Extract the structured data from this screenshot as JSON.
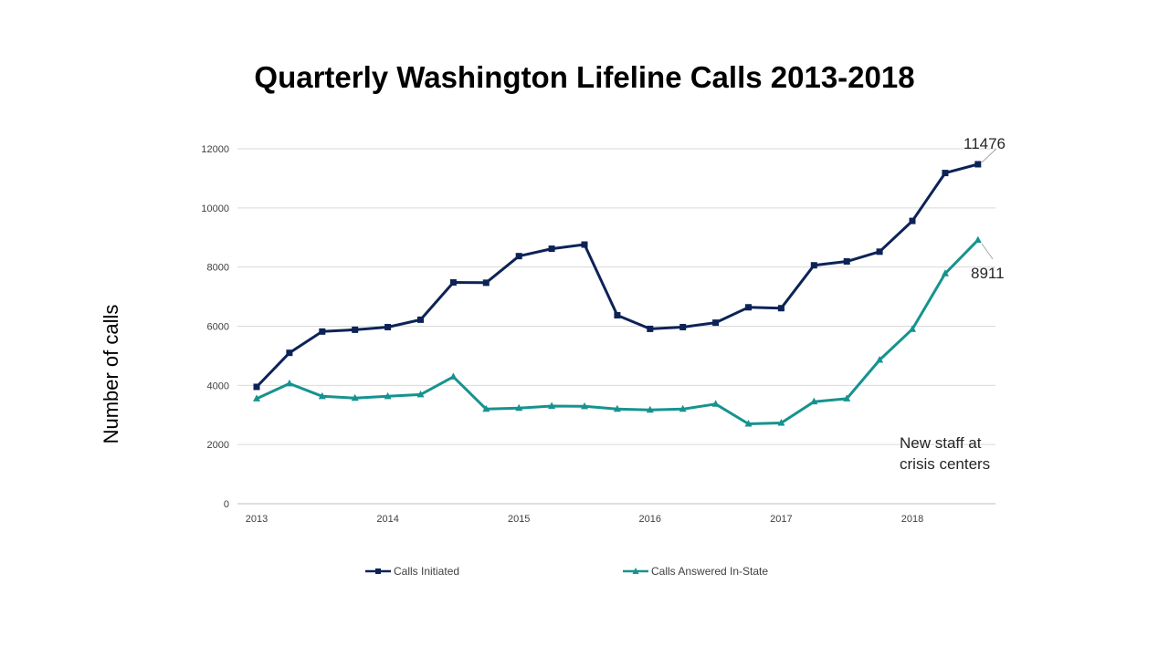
{
  "chart_data": {
    "type": "line",
    "title": "Quarterly Washington Lifeline Calls 2013-2018",
    "ylabel": "Number of calls",
    "xlabel": "",
    "ylim": [
      0,
      12000
    ],
    "yticks": [
      0,
      2000,
      4000,
      6000,
      8000,
      10000,
      12000
    ],
    "x_tick_labels": [
      "2013",
      "2014",
      "2015",
      "2016",
      "2017",
      "2018"
    ],
    "x": [
      "2013 Q1",
      "2013 Q2",
      "2013 Q3",
      "2013 Q4",
      "2014 Q1",
      "2014 Q2",
      "2014 Q3",
      "2014 Q4",
      "2015 Q1",
      "2015 Q2",
      "2015 Q3",
      "2015 Q4",
      "2016 Q1",
      "2016 Q2",
      "2016 Q3",
      "2016 Q4",
      "2017 Q1",
      "2017 Q2",
      "2017 Q3",
      "2017 Q4",
      "2018 Q1",
      "2018 Q2",
      "2018 Q3"
    ],
    "grid": true,
    "legend_position": "bottom",
    "series": [
      {
        "name": "Calls Initiated",
        "color": "#0d2357",
        "marker": "square",
        "values": [
          3950,
          5100,
          5820,
          5880,
          5970,
          6220,
          7480,
          7470,
          8370,
          8620,
          8760,
          6370,
          5910,
          5970,
          6120,
          6640,
          6610,
          8060,
          8190,
          8520,
          9560,
          11180,
          11476
        ]
      },
      {
        "name": "Calls Answered In-State",
        "color": "#16938f",
        "marker": "triangle",
        "values": [
          3550,
          4060,
          3630,
          3570,
          3630,
          3690,
          4290,
          3200,
          3230,
          3300,
          3290,
          3200,
          3170,
          3200,
          3370,
          2700,
          2730,
          3450,
          3550,
          4860,
          5900,
          7780,
          8911
        ]
      }
    ],
    "annotations": {
      "last_initiated": "11476",
      "last_answered": "8911",
      "note_line1": "New staff at",
      "note_line2": "crisis centers"
    }
  }
}
